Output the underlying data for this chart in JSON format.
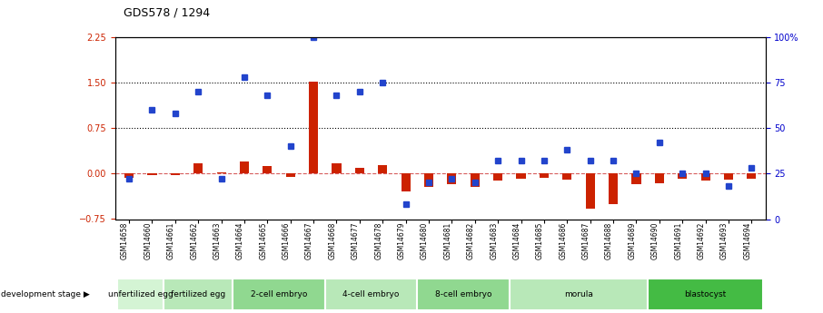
{
  "title": "GDS578 / 1294",
  "samples": [
    "GSM14658",
    "GSM14660",
    "GSM14661",
    "GSM14662",
    "GSM14663",
    "GSM14664",
    "GSM14665",
    "GSM14666",
    "GSM14667",
    "GSM14668",
    "GSM14677",
    "GSM14678",
    "GSM14679",
    "GSM14680",
    "GSM14681",
    "GSM14682",
    "GSM14683",
    "GSM14684",
    "GSM14685",
    "GSM14686",
    "GSM14687",
    "GSM14688",
    "GSM14689",
    "GSM14690",
    "GSM14691",
    "GSM14692",
    "GSM14693",
    "GSM14694"
  ],
  "log_ratio": [
    -0.07,
    -0.03,
    -0.02,
    0.17,
    0.02,
    0.2,
    0.13,
    -0.05,
    1.52,
    0.17,
    0.1,
    0.14,
    -0.3,
    -0.22,
    -0.17,
    -0.22,
    -0.12,
    -0.08,
    -0.07,
    -0.1,
    -0.58,
    -0.5,
    -0.18,
    -0.16,
    -0.08,
    -0.12,
    -0.1,
    -0.08
  ],
  "percentile_rank_pct": [
    22,
    60,
    58,
    70,
    22,
    78,
    68,
    40,
    100,
    68,
    70,
    75,
    8,
    20,
    22,
    20,
    32,
    32,
    32,
    38,
    32,
    32,
    25,
    42,
    25,
    25,
    18,
    28
  ],
  "stages": [
    {
      "label": "unfertilized egg",
      "start": 0,
      "end": 2,
      "color": "#d4f4d4"
    },
    {
      "label": "fertilized egg",
      "start": 2,
      "end": 5,
      "color": "#b8e8b8"
    },
    {
      "label": "2-cell embryo",
      "start": 5,
      "end": 9,
      "color": "#90d890"
    },
    {
      "label": "4-cell embryo",
      "start": 9,
      "end": 13,
      "color": "#b8e8b8"
    },
    {
      "label": "8-cell embryo",
      "start": 13,
      "end": 17,
      "color": "#90d890"
    },
    {
      "label": "morula",
      "start": 17,
      "end": 23,
      "color": "#b8e8b8"
    },
    {
      "label": "blastocyst",
      "start": 23,
      "end": 28,
      "color": "#44bb44"
    }
  ],
  "ylim_left": [
    -0.75,
    2.25
  ],
  "yticks_left": [
    -0.75,
    0.0,
    0.75,
    1.5,
    2.25
  ],
  "ylim_right": [
    0,
    100
  ],
  "yticks_right": [
    0,
    25,
    50,
    75,
    100
  ],
  "hlines": [
    0.75,
    1.5
  ],
  "bar_color": "#cc2200",
  "dot_color": "#2244cc",
  "zero_line_color": "#cc3333",
  "background_color": "#ffffff"
}
